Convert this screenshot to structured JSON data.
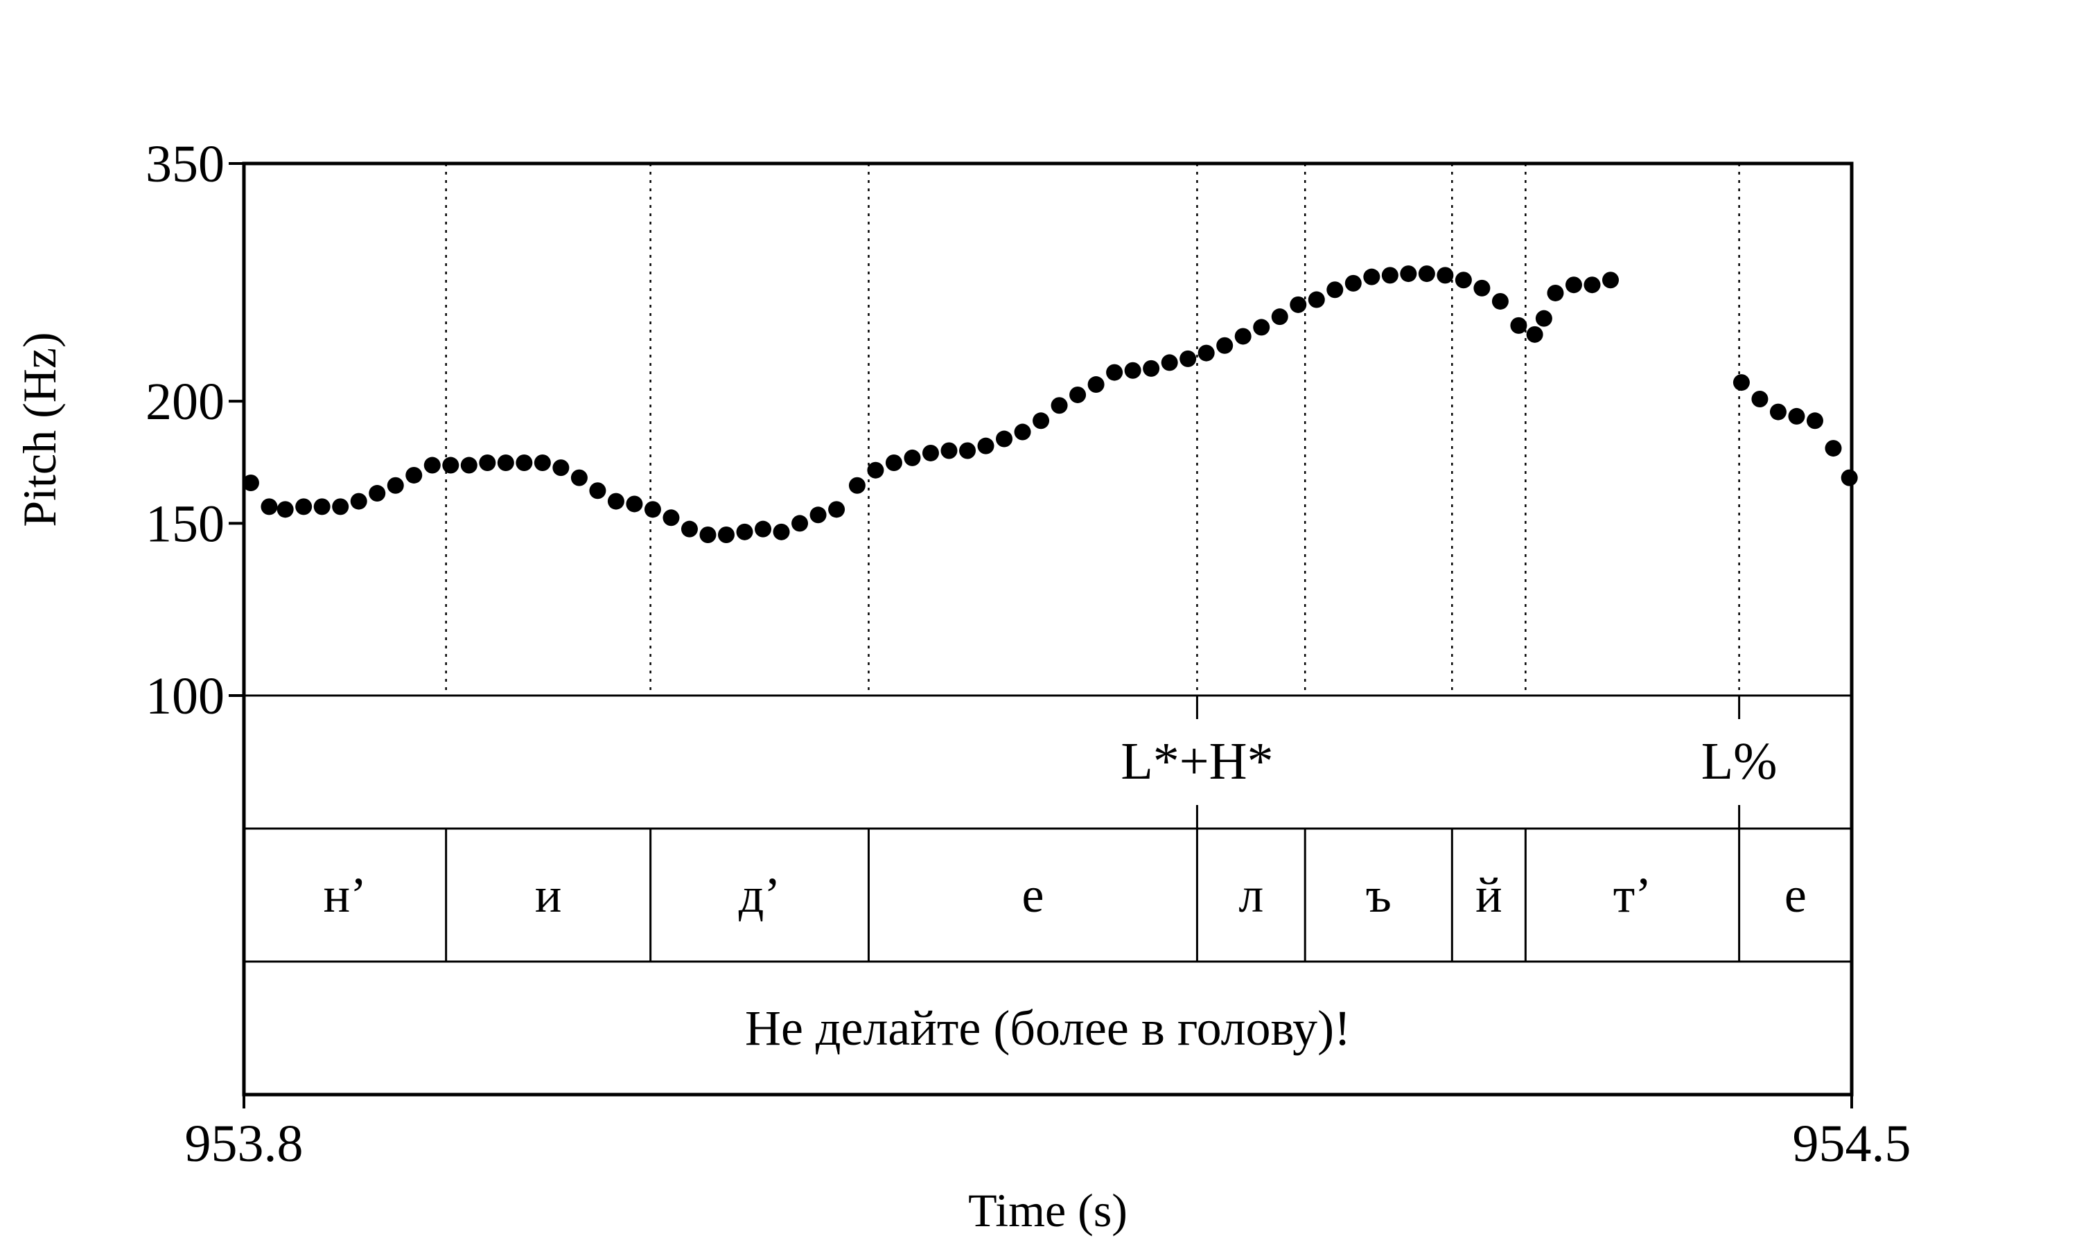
{
  "chart_data": {
    "type": "scatter",
    "xlabel": "Time (s)",
    "ylabel": "Pitch (Hz)",
    "xlim": [
      953.8,
      954.5
    ],
    "ylim": [
      100,
      350
    ],
    "y_scale": "log",
    "x_ticks": [
      "953.8",
      "954.5"
    ],
    "y_ticks": [
      {
        "value": 100,
        "label": "100"
      },
      {
        "value": 150,
        "label": "150"
      },
      {
        "value": 200,
        "label": "200"
      },
      {
        "value": 350,
        "label": "350"
      }
    ],
    "boundaries": [
      953.888,
      953.977,
      954.072,
      954.215,
      954.262,
      954.326,
      954.358,
      954.451
    ],
    "tones": [
      {
        "label": "L*+H*",
        "time": 954.215
      },
      {
        "label": "L%",
        "time": 954.451
      }
    ],
    "segments": [
      {
        "label": "н’",
        "start": 953.8,
        "end": 953.888
      },
      {
        "label": "и",
        "start": 953.888,
        "end": 953.977
      },
      {
        "label": "д’",
        "start": 953.977,
        "end": 954.072
      },
      {
        "label": "е",
        "start": 954.072,
        "end": 954.215
      },
      {
        "label": "л",
        "start": 954.215,
        "end": 954.262
      },
      {
        "label": "ъ",
        "start": 954.262,
        "end": 954.326
      },
      {
        "label": "й",
        "start": 954.326,
        "end": 954.358
      },
      {
        "label": "т’",
        "start": 954.358,
        "end": 954.451
      },
      {
        "label": "е",
        "start": 954.451,
        "end": 954.5
      }
    ],
    "sentence": "Не делайте (более в голову)!",
    "points": [
      {
        "x": 953.803,
        "y": 165
      },
      {
        "x": 953.811,
        "y": 156
      },
      {
        "x": 953.818,
        "y": 155
      },
      {
        "x": 953.826,
        "y": 156
      },
      {
        "x": 953.834,
        "y": 156
      },
      {
        "x": 953.842,
        "y": 156
      },
      {
        "x": 953.85,
        "y": 158
      },
      {
        "x": 953.858,
        "y": 161
      },
      {
        "x": 953.866,
        "y": 164
      },
      {
        "x": 953.874,
        "y": 168
      },
      {
        "x": 953.882,
        "y": 172
      },
      {
        "x": 953.89,
        "y": 172
      },
      {
        "x": 953.898,
        "y": 172
      },
      {
        "x": 953.906,
        "y": 173
      },
      {
        "x": 953.914,
        "y": 173
      },
      {
        "x": 953.922,
        "y": 173
      },
      {
        "x": 953.93,
        "y": 173
      },
      {
        "x": 953.938,
        "y": 171
      },
      {
        "x": 953.946,
        "y": 167
      },
      {
        "x": 953.954,
        "y": 162
      },
      {
        "x": 953.962,
        "y": 158
      },
      {
        "x": 953.97,
        "y": 157
      },
      {
        "x": 953.978,
        "y": 155
      },
      {
        "x": 953.986,
        "y": 152
      },
      {
        "x": 953.994,
        "y": 148
      },
      {
        "x": 954.002,
        "y": 146
      },
      {
        "x": 954.01,
        "y": 146
      },
      {
        "x": 954.018,
        "y": 147
      },
      {
        "x": 954.026,
        "y": 148
      },
      {
        "x": 954.034,
        "y": 147
      },
      {
        "x": 954.042,
        "y": 150
      },
      {
        "x": 954.05,
        "y": 153
      },
      {
        "x": 954.058,
        "y": 155
      },
      {
        "x": 954.067,
        "y": 164
      },
      {
        "x": 954.075,
        "y": 170
      },
      {
        "x": 954.083,
        "y": 173
      },
      {
        "x": 954.091,
        "y": 175
      },
      {
        "x": 954.099,
        "y": 177
      },
      {
        "x": 954.107,
        "y": 178
      },
      {
        "x": 954.115,
        "y": 178
      },
      {
        "x": 954.123,
        "y": 180
      },
      {
        "x": 954.131,
        "y": 183
      },
      {
        "x": 954.139,
        "y": 186
      },
      {
        "x": 954.147,
        "y": 191
      },
      {
        "x": 954.155,
        "y": 198
      },
      {
        "x": 954.163,
        "y": 203
      },
      {
        "x": 954.171,
        "y": 208
      },
      {
        "x": 954.179,
        "y": 214
      },
      {
        "x": 954.187,
        "y": 215
      },
      {
        "x": 954.195,
        "y": 216
      },
      {
        "x": 954.203,
        "y": 219
      },
      {
        "x": 954.211,
        "y": 221
      },
      {
        "x": 954.219,
        "y": 224
      },
      {
        "x": 954.227,
        "y": 228
      },
      {
        "x": 954.235,
        "y": 233
      },
      {
        "x": 954.243,
        "y": 238
      },
      {
        "x": 954.251,
        "y": 244
      },
      {
        "x": 954.259,
        "y": 251
      },
      {
        "x": 954.267,
        "y": 254
      },
      {
        "x": 954.275,
        "y": 260
      },
      {
        "x": 954.283,
        "y": 264
      },
      {
        "x": 954.291,
        "y": 268
      },
      {
        "x": 954.299,
        "y": 269
      },
      {
        "x": 954.307,
        "y": 270
      },
      {
        "x": 954.315,
        "y": 270
      },
      {
        "x": 954.323,
        "y": 269
      },
      {
        "x": 954.331,
        "y": 266
      },
      {
        "x": 954.339,
        "y": 261
      },
      {
        "x": 954.347,
        "y": 253
      },
      {
        "x": 954.355,
        "y": 239
      },
      {
        "x": 954.362,
        "y": 234
      },
      {
        "x": 954.366,
        "y": 243
      },
      {
        "x": 954.371,
        "y": 258
      },
      {
        "x": 954.379,
        "y": 263
      },
      {
        "x": 954.387,
        "y": 263
      },
      {
        "x": 954.395,
        "y": 266
      },
      {
        "x": 954.452,
        "y": 209
      },
      {
        "x": 954.46,
        "y": 201
      },
      {
        "x": 954.468,
        "y": 195
      },
      {
        "x": 954.476,
        "y": 193
      },
      {
        "x": 954.484,
        "y": 191
      },
      {
        "x": 954.492,
        "y": 179
      },
      {
        "x": 954.499,
        "y": 167
      }
    ]
  }
}
